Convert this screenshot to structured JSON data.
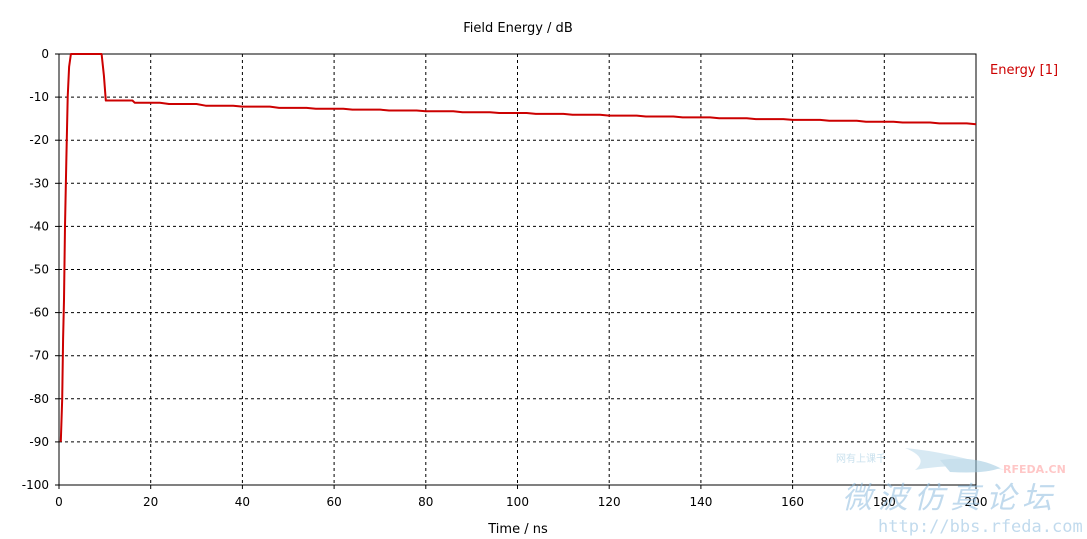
{
  "chart_data": {
    "type": "line",
    "title": "Field Energy / dB",
    "xlabel": "Time / ns",
    "ylabel": "",
    "xlim": [
      0,
      200
    ],
    "ylim": [
      -100,
      0
    ],
    "xticks": [
      0,
      20,
      40,
      60,
      80,
      100,
      120,
      140,
      160,
      180,
      200
    ],
    "yticks": [
      0,
      -10,
      -20,
      -30,
      -40,
      -50,
      -60,
      -70,
      -80,
      -90,
      -100
    ],
    "grid": true,
    "legend": "top-right",
    "series": [
      {
        "name": "Energy [1]",
        "color": "#cc0000",
        "x": [
          0.4,
          0.7,
          0.9,
          1.1,
          1.3,
          1.6,
          1.9,
          2.2,
          2.6,
          3.0,
          4.0,
          6.0,
          8.0,
          9.3,
          9.8,
          10.2,
          12,
          14,
          16,
          16.5,
          22,
          24,
          30,
          32,
          38,
          40,
          46,
          48,
          54,
          56,
          62,
          64,
          70,
          72,
          78,
          80,
          86,
          88,
          94,
          96,
          102,
          104,
          110,
          112,
          118,
          120,
          126,
          128,
          134,
          136,
          142,
          144,
          150,
          152,
          158,
          160,
          166,
          168,
          174,
          176,
          182,
          184,
          190,
          192,
          198,
          200
        ],
        "y": [
          -90.0,
          -80.0,
          -66.0,
          -57.0,
          -40.0,
          -25.0,
          -10.0,
          -3.0,
          0.0,
          0.0,
          0.0,
          0.0,
          0.0,
          0.0,
          -5.0,
          -10.8,
          -10.8,
          -10.8,
          -10.8,
          -11.3,
          -11.3,
          -11.6,
          -11.6,
          -12.0,
          -12.0,
          -12.2,
          -12.2,
          -12.5,
          -12.5,
          -12.7,
          -12.7,
          -12.9,
          -12.9,
          -13.1,
          -13.1,
          -13.3,
          -13.3,
          -13.5,
          -13.5,
          -13.7,
          -13.7,
          -13.9,
          -13.9,
          -14.1,
          -14.1,
          -14.3,
          -14.3,
          -14.5,
          -14.5,
          -14.7,
          -14.7,
          -14.9,
          -14.9,
          -15.1,
          -15.1,
          -15.3,
          -15.3,
          -15.5,
          -15.5,
          -15.7,
          -15.7,
          -15.9,
          -15.9,
          -16.1,
          -16.1,
          -16.3
        ]
      }
    ]
  },
  "watermark": {
    "url": "http://bbs.rfeda.com",
    "brand": "RFEDA.CN",
    "cn_title": "微波仿真论坛",
    "cn_small": "网有上课千"
  }
}
